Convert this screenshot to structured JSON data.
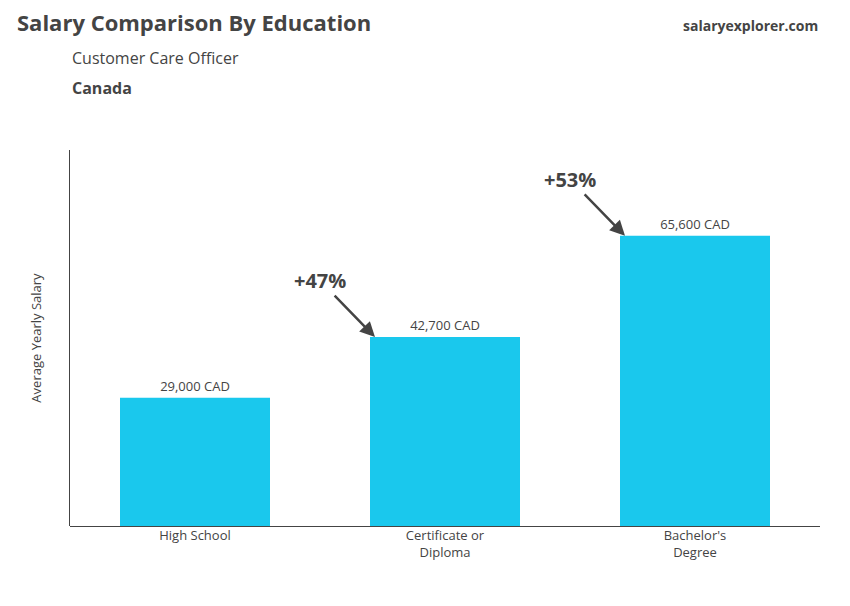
{
  "chart_data": {
    "type": "bar",
    "title": "Salary Comparison By Education",
    "subtitle": "Customer Care Officer",
    "annotations": [
      "Canada",
      "salaryexplorer.com"
    ],
    "ylabel": "Average Yearly Salary",
    "categories": [
      "High School",
      "Certificate or\nDiploma",
      "Bachelor's\nDegree"
    ],
    "values": [
      29000,
      42700,
      65600
    ],
    "value_labels": [
      "29,000 CAD",
      "42,700 CAD",
      "65,600 CAD"
    ],
    "change_labels": [
      "+47%",
      "+53%"
    ],
    "data_labels": true,
    "color": "#1AC8ED",
    "ylim": [
      0,
      85000
    ],
    "grid": false,
    "tick_labels": "x"
  }
}
